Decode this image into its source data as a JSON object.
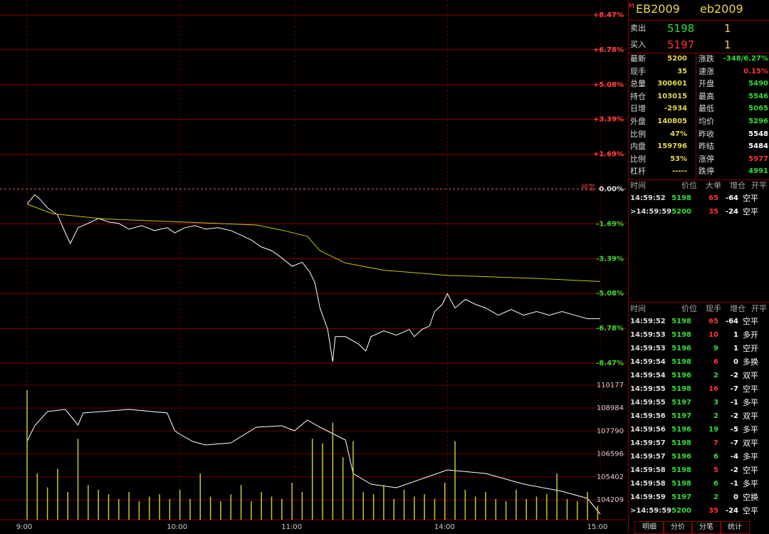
{
  "chart_data": [
    {
      "type": "line",
      "alert_label": "预警",
      "xlim": [
        0,
        225
      ],
      "xticks": [
        {
          "value": 0,
          "label": "9:00"
        },
        {
          "value": 60,
          "label": "10:00"
        },
        {
          "value": 105,
          "label": "11:00"
        },
        {
          "value": 165,
          "label": "14:00"
        },
        {
          "value": 225,
          "label": "15:00"
        }
      ],
      "ylim": [
        -8.47,
        8.47
      ],
      "yticks": [
        {
          "value": 8.47,
          "label": "+8.47%"
        },
        {
          "value": 6.78,
          "label": "+6.78%"
        },
        {
          "value": 5.08,
          "label": "+5.08%"
        },
        {
          "value": 3.39,
          "label": "+3.39%"
        },
        {
          "value": 1.69,
          "label": "+1.69%"
        },
        {
          "value": 0,
          "label": "0.00%"
        },
        {
          "value": -1.69,
          "label": "-1.69%"
        },
        {
          "value": -3.39,
          "label": "-3.39%"
        },
        {
          "value": -5.08,
          "label": "-5.08%"
        },
        {
          "value": -6.78,
          "label": "-6.78%"
        },
        {
          "value": -8.47,
          "label": "-8.47%"
        }
      ],
      "series": [
        {
          "color": "#ffffff",
          "x": [
            0,
            3,
            5,
            8,
            12,
            15,
            17,
            20,
            24,
            28,
            32,
            36,
            40,
            45,
            50,
            55,
            58,
            62,
            66,
            70,
            75,
            80,
            85,
            88,
            92,
            96,
            100,
            104,
            108,
            111,
            113,
            115,
            118,
            120,
            121,
            125,
            130,
            133,
            135,
            140,
            145,
            150,
            152,
            155,
            158,
            160,
            163,
            165,
            168,
            172,
            176,
            180,
            185,
            190,
            195,
            200,
            205,
            210,
            215,
            220,
            225
          ],
          "values": [
            -0.73,
            -0.28,
            -0.49,
            -0.91,
            -1.26,
            -2.13,
            -2.65,
            -1.88,
            -1.67,
            -1.43,
            -1.6,
            -1.67,
            -1.95,
            -1.78,
            -2.02,
            -1.88,
            -2.13,
            -1.88,
            -1.78,
            -1.95,
            -1.88,
            -2.02,
            -2.3,
            -2.48,
            -2.82,
            -3.0,
            -3.35,
            -3.76,
            -3.56,
            -4.04,
            -4.57,
            -5.79,
            -6.83,
            -8.4,
            -7.18,
            -7.18,
            -7.53,
            -7.88,
            -7.18,
            -6.9,
            -7.11,
            -6.83,
            -7.18,
            -6.83,
            -6.66,
            -5.96,
            -5.61,
            -5.09,
            -5.79,
            -5.37,
            -5.61,
            -5.79,
            -6.14,
            -5.86,
            -6.14,
            -5.96,
            -6.14,
            -5.96,
            -6.14,
            -6.31,
            -6.31
          ]
        },
        {
          "color": "#c8c800",
          "x": [
            0,
            10,
            30,
            60,
            90,
            100,
            110,
            115,
            125,
            140,
            165,
            200,
            225
          ],
          "values": [
            -0.73,
            -1.2,
            -1.45,
            -1.6,
            -1.75,
            -2.0,
            -2.3,
            -3.0,
            -3.6,
            -3.95,
            -4.2,
            -4.35,
            -4.5
          ]
        }
      ]
    },
    {
      "type": "bar-line",
      "xlim": [
        0,
        225
      ],
      "ylim": [
        103171,
        110399
      ],
      "yticks": [
        110177,
        108984,
        107790,
        106596,
        105402,
        104209
      ],
      "y2lim": [
        0,
        6000
      ],
      "series": [
        {
          "color": "#ffffff",
          "x": [
            0,
            3,
            8,
            15,
            20,
            22,
            40,
            55,
            58,
            60,
            65,
            70,
            80,
            90,
            100,
            105,
            110,
            115,
            125,
            128,
            135,
            145,
            165,
            180,
            195,
            210,
            220,
            225
          ],
          "values": [
            107248,
            108064,
            108805,
            108917,
            108101,
            108731,
            108917,
            108731,
            107805,
            107619,
            107248,
            107063,
            107174,
            107990,
            108064,
            107805,
            108361,
            107990,
            107323,
            105580,
            105024,
            104839,
            105766,
            105580,
            105024,
            104653,
            104283,
            103467
          ]
        },
        {
          "color": "#c8c832",
          "axis": "y2",
          "x": [
            0,
            4,
            8,
            12,
            16,
            20,
            24,
            28,
            32,
            36,
            40,
            44,
            48,
            52,
            56,
            60,
            64,
            68,
            72,
            76,
            80,
            84,
            88,
            92,
            96,
            100,
            104,
            108,
            112,
            116,
            120,
            124,
            128,
            132,
            136,
            140,
            144,
            148,
            152,
            156,
            160,
            164,
            168,
            172,
            176,
            180,
            184,
            188,
            192,
            196,
            200,
            204,
            208,
            212,
            216,
            220,
            224
          ],
          "values": [
            5600,
            2000,
            1400,
            2200,
            1200,
            3500,
            1500,
            1300,
            1100,
            900,
            1200,
            800,
            1000,
            1100,
            900,
            1300,
            900,
            2000,
            1000,
            800,
            1100,
            1500,
            800,
            1200,
            1000,
            900,
            1600,
            1200,
            3500,
            3300,
            4200,
            2700,
            3400,
            1200,
            1100,
            1500,
            900,
            1300,
            1000,
            1100,
            900,
            1600,
            3400,
            1300,
            1000,
            1200,
            900,
            800,
            1300,
            900,
            1000,
            1100,
            2000,
            900,
            800,
            1200,
            600
          ]
        }
      ]
    }
  ],
  "quote": {
    "symbol": "EB2009",
    "name": "eb2009",
    "sell": [
      "卖出",
      "5198",
      "1"
    ],
    "buy": [
      "买入",
      "5197",
      "1"
    ],
    "stats": [
      [
        "最新",
        "5200",
        "涨跌",
        "-348/6.27%"
      ],
      [
        "现手",
        "35",
        "速涨",
        "0.15%"
      ],
      [
        "总量",
        "300601",
        "开盘",
        "5490"
      ],
      [
        "持仓",
        "103015",
        "最高",
        "5546"
      ],
      [
        "日增",
        "-2934",
        "最低",
        "5065"
      ],
      [
        "外盘",
        "140805",
        "均价",
        "5296"
      ],
      [
        "比例",
        "47%",
        "昨收",
        "5548"
      ],
      [
        "内盘",
        "159796",
        "昨结",
        "5484"
      ],
      [
        "比例",
        "53%",
        "涨停",
        "5977"
      ],
      [
        "杠杆",
        "-----",
        "跌停",
        "4991"
      ]
    ],
    "stat_colors": [
      "#33dd33",
      "#ff3333",
      "#33dd33",
      "#33dd33",
      "#33dd33",
      "#33dd33",
      "#ffffff",
      "#ffffff",
      "#ff3333",
      "#33dd33"
    ]
  },
  "big_orders": {
    "header": [
      "时间",
      "价位",
      "大单",
      "增仓",
      "开平"
    ],
    "rows": [
      [
        "14:59:52",
        "5198",
        "65",
        "-64",
        "空平",
        "#ff3333"
      ],
      [
        ">14:59:59",
        "5200",
        "35",
        "-24",
        "空平",
        "#ff3333"
      ]
    ]
  },
  "trades": {
    "header": [
      "时间",
      "价位",
      "现手",
      "增仓",
      "开平"
    ],
    "rows": [
      [
        "14:59:52",
        "5198",
        "65",
        "-64",
        "空平",
        "#ff3333"
      ],
      [
        "14:59:53",
        "5198",
        "10",
        "1",
        "多开",
        "#ff3333"
      ],
      [
        "14:59:53",
        "5196",
        "9",
        "1",
        "空开",
        "#33dd33"
      ],
      [
        "14:59:54",
        "5198",
        "6",
        "0",
        "多换",
        "#ff3333"
      ],
      [
        "14:59:54",
        "5196",
        "2",
        "-2",
        "双平",
        "#33dd33"
      ],
      [
        "14:59:55",
        "5198",
        "16",
        "-7",
        "空平",
        "#ff3333"
      ],
      [
        "14:59:55",
        "5197",
        "3",
        "-1",
        "多平",
        "#33dd33"
      ],
      [
        "14:59:56",
        "5197",
        "2",
        "-2",
        "双平",
        "#33dd33"
      ],
      [
        "14:59:56",
        "5196",
        "19",
        "-5",
        "多平",
        "#33dd33"
      ],
      [
        "14:59:57",
        "5198",
        "7",
        "-7",
        "双平",
        "#ff3333"
      ],
      [
        "14:59:57",
        "5196",
        "6",
        "-4",
        "多平",
        "#33dd33"
      ],
      [
        "14:59:58",
        "5198",
        "5",
        "-2",
        "空平",
        "#ff3333"
      ],
      [
        "14:59:58",
        "5198",
        "6",
        "-1",
        "多平",
        "#33dd33"
      ],
      [
        "14:59:59",
        "5197",
        "2",
        "0",
        "空换",
        "#33dd33"
      ],
      [
        ">14:59:59",
        "5200",
        "35",
        "-24",
        "空平",
        "#ff3333"
      ]
    ]
  },
  "tabs": [
    "明细",
    "分价",
    "分笔",
    "统计"
  ]
}
